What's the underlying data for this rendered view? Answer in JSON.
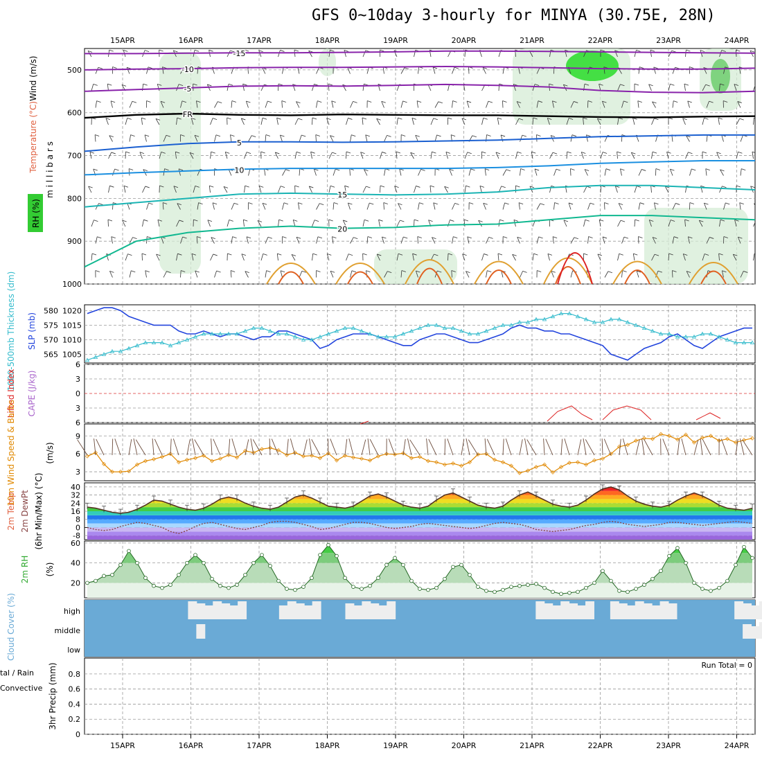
{
  "title": "GFS 0~10day 3-hourly for MINYA (30.75E, 28N)",
  "colors": {
    "rh": "#22cc22",
    "temp": "#e06040",
    "wind": "#0000cc",
    "slp": "#2244dd",
    "thick": "#33bbcc",
    "lifted": "#dd2222",
    "cape": "#aa66cc",
    "wind10": "#e08800",
    "cloud": "#6aaad6",
    "cloud_gap": "#eeeeee",
    "rh2m": "#33aa33",
    "precip_total": "#33cc33",
    "precip_conv": "#dd2222"
  },
  "chart_data": [
    {
      "type": "heatmap",
      "name": "upper-air",
      "ylabel_parts": [
        "RH (%)",
        "Temperature (°C)",
        "Wind (m/s)"
      ],
      "ylabel2": "m i l l i b a r s",
      "x": [
        "15APR",
        "16APR",
        "17APR",
        "18APR",
        "19APR",
        "20APR",
        "21APR",
        "22APR",
        "23APR",
        "24APR"
      ],
      "yticks": [
        500,
        600,
        700,
        800,
        900,
        1000
      ],
      "ylim": [
        1000,
        450
      ],
      "temperature_contours": [
        {
          "level": -15,
          "p": [
            462,
            462,
            461,
            460,
            460,
            459,
            458,
            456,
            456,
            457,
            458,
            459,
            460,
            461
          ]
        },
        {
          "level": -10,
          "p": [
            500,
            498,
            497,
            495,
            494,
            494,
            493,
            492,
            493,
            495,
            497,
            498,
            498,
            496
          ]
        },
        {
          "level": -5,
          "p": [
            550,
            546,
            542,
            538,
            537,
            538,
            536,
            534,
            536,
            540,
            548,
            552,
            553,
            550
          ]
        },
        {
          "level": 0,
          "p": [
            612,
            605,
            602,
            605,
            606,
            604,
            605,
            606,
            606,
            608,
            610,
            611,
            609,
            608
          ]
        },
        {
          "level": 5,
          "p": [
            690,
            680,
            672,
            668,
            668,
            669,
            668,
            666,
            664,
            660,
            656,
            654,
            652,
            652
          ]
        },
        {
          "level": 10,
          "p": [
            745,
            740,
            736,
            732,
            730,
            730,
            730,
            730,
            728,
            724,
            718,
            715,
            712,
            712
          ]
        },
        {
          "level": 15,
          "p": [
            820,
            810,
            800,
            790,
            788,
            790,
            792,
            790,
            785,
            775,
            770,
            770,
            775,
            780
          ]
        },
        {
          "level": 20,
          "p": [
            960,
            900,
            880,
            870,
            865,
            870,
            868,
            862,
            860,
            850,
            840,
            840,
            845,
            850
          ]
        }
      ],
      "contour_labels": [
        "-15",
        "-10",
        "-5",
        "FR",
        "5",
        "10",
        "15",
        "20"
      ]
    },
    {
      "type": "line",
      "name": "slp-thickness",
      "ylabel": "SLP (mb)",
      "ylabel2": "1000-500mb Thickness (dm)",
      "yticks_left": [
        565,
        570,
        575,
        580
      ],
      "yticks_right": [
        1005,
        1010,
        1015,
        1020
      ],
      "series": [
        {
          "name": "SLP (mb)",
          "y_unit": "mb",
          "values": [
            1019,
            1020,
            1021,
            1021,
            1020,
            1018,
            1017,
            1016,
            1015,
            1015,
            1015,
            1013,
            1012,
            1012,
            1013,
            1012,
            1011,
            1012,
            1012,
            1011,
            1010,
            1011,
            1011,
            1013,
            1013,
            1012,
            1011,
            1010,
            1007,
            1008,
            1010,
            1011,
            1012,
            1012,
            1012,
            1011,
            1010,
            1009,
            1008,
            1008,
            1010,
            1011,
            1012,
            1012,
            1011,
            1010,
            1009,
            1009,
            1010,
            1011,
            1012,
            1014,
            1015,
            1014,
            1014,
            1013,
            1013,
            1012,
            1012,
            1011,
            1010,
            1009,
            1008,
            1005,
            1004,
            1003,
            1005,
            1007,
            1008,
            1009,
            1011,
            1012,
            1010,
            1008,
            1007,
            1009,
            1011,
            1012,
            1013,
            1014,
            1014
          ]
        },
        {
          "name": "Thickness (dm)",
          "y_unit": "dm",
          "values": [
            563,
            564,
            565,
            566,
            566,
            567,
            568,
            569,
            569,
            569,
            568,
            569,
            570,
            571,
            572,
            572,
            572,
            572,
            572,
            573,
            574,
            574,
            573,
            572,
            572,
            571,
            570,
            570,
            571,
            572,
            573,
            574,
            574,
            573,
            572,
            571,
            571,
            571,
            572,
            573,
            574,
            575,
            575,
            574,
            574,
            573,
            572,
            572,
            573,
            574,
            575,
            575,
            576,
            576,
            577,
            577,
            578,
            579,
            579,
            578,
            577,
            576,
            576,
            577,
            577,
            576,
            575,
            574,
            573,
            572,
            572,
            571,
            571,
            571,
            572,
            572,
            571,
            570,
            569,
            569,
            569
          ]
        }
      ]
    },
    {
      "type": "line",
      "name": "cape-lifted",
      "ylabel": "Lifted Index",
      "ylabel2": "CAPE (J/kg)",
      "yticks": [
        "-6",
        "-3",
        "0",
        "3",
        "6"
      ],
      "ylim": [
        -6,
        6
      ],
      "series": [
        {
          "name": "Lifted Index",
          "values": [
            null,
            null,
            null,
            null,
            null,
            null,
            null,
            null,
            null,
            null,
            null,
            null,
            null,
            null,
            null,
            null,
            null,
            null,
            null,
            null,
            null,
            null,
            null,
            null,
            null,
            null,
            null,
            null,
            null,
            null,
            null,
            null,
            null,
            null,
            null,
            null,
            null,
            null,
            null,
            null,
            null,
            null,
            null,
            null,
            null,
            null,
            null,
            null,
            null,
            null,
            null,
            null,
            null,
            null,
            null,
            null,
            null,
            null,
            null,
            null,
            null,
            null,
            null,
            null,
            null,
            3,
            4,
            5,
            6,
            7,
            7,
            6,
            5,
            4,
            3,
            3,
            4,
            5,
            6,
            7,
            7
          ]
        }
      ]
    },
    {
      "type": "line",
      "name": "wind10m",
      "ylabel": "10m Wind Speed & Barbs",
      "ylabel2": "(m/s)",
      "yticks": [
        3,
        6,
        9
      ],
      "ylim": [
        1.5,
        11
      ],
      "series": [
        {
          "name": "10m Wind Speed",
          "values": [
            5.6,
            6.2,
            4.3,
            3.0,
            3.0,
            3.1,
            4.2,
            4.8,
            5.1,
            5.5,
            6.0,
            4.6,
            5.0,
            5.3,
            5.7,
            4.8,
            5.2,
            5.8,
            5.4,
            6.5,
            6.2,
            6.8,
            7.0,
            6.6,
            5.8,
            6.2,
            5.6,
            5.7,
            5.3,
            6.1,
            4.9,
            5.7,
            5.4,
            5.2,
            4.9,
            5.6,
            6.0,
            5.9,
            6.1,
            5.3,
            5.5,
            4.8,
            4.6,
            4.2,
            4.4,
            4.0,
            4.6,
            5.9,
            6.0,
            5.0,
            4.6,
            4.0,
            2.8,
            3.2,
            3.8,
            4.2,
            2.9,
            3.8,
            4.5,
            4.6,
            4.2,
            4.9,
            5.2,
            6.0,
            7.2,
            7.5,
            8.2,
            8.6,
            8.5,
            9.3,
            9.0,
            8.4,
            9.2,
            7.9,
            8.7,
            9.0,
            8.2,
            8.5,
            7.9,
            8.3,
            8.6
          ]
        }
      ]
    },
    {
      "type": "area",
      "name": "temp2m",
      "ylabel": "2m Temp",
      "ylabel2": "2m DewPt",
      "ylabel3": "(6hr Min/Max) (°C)",
      "yticks": [
        -8,
        0,
        8,
        16,
        24,
        32,
        40
      ],
      "ylim": [
        -12,
        44
      ],
      "series": [
        {
          "name": "2m Temp",
          "values": [
            20,
            19,
            17,
            15,
            14,
            15,
            18,
            22,
            27,
            26,
            23,
            20,
            18,
            17,
            19,
            23,
            28,
            30,
            28,
            24,
            21,
            19,
            18,
            20,
            25,
            30,
            32,
            29,
            25,
            21,
            20,
            19,
            21,
            26,
            31,
            33,
            30,
            26,
            22,
            20,
            19,
            21,
            27,
            32,
            34,
            30,
            26,
            22,
            20,
            19,
            21,
            27,
            32,
            35,
            31,
            27,
            23,
            21,
            20,
            22,
            27,
            33,
            38,
            40,
            37,
            31,
            26,
            23,
            21,
            20,
            22,
            27,
            31,
            34,
            31,
            27,
            22,
            19,
            18,
            17,
            19
          ]
        },
        {
          "name": "2m DewPt",
          "values": [
            0,
            -2,
            -3,
            -2,
            1,
            3,
            5,
            4,
            2,
            0,
            -4,
            -6,
            -3,
            1,
            4,
            5,
            3,
            1,
            -1,
            -2,
            0,
            2,
            5,
            6,
            6,
            5,
            3,
            1,
            -2,
            -1,
            1,
            3,
            5,
            5,
            4,
            2,
            0,
            -1,
            0,
            1,
            3,
            4,
            3,
            2,
            1,
            0,
            -1,
            0,
            2,
            4,
            5,
            4,
            3,
            1,
            -2,
            -3,
            -4,
            -3,
            -2,
            0,
            2,
            3,
            5,
            6,
            5,
            3,
            2,
            1,
            2,
            3,
            5,
            5,
            4,
            3,
            2,
            3,
            4,
            5,
            6,
            5,
            4
          ]
        }
      ]
    },
    {
      "type": "area",
      "name": "rh2m",
      "ylabel": "2m RH",
      "ylabel2": "(%)",
      "yticks": [
        20,
        40,
        60
      ],
      "ylim": [
        5,
        62
      ],
      "series": [
        {
          "name": "2m RH",
          "values": [
            20,
            22,
            27,
            28,
            38,
            52,
            40,
            25,
            17,
            15,
            18,
            28,
            40,
            48,
            40,
            24,
            17,
            15,
            18,
            28,
            40,
            48,
            37,
            22,
            14,
            13,
            16,
            25,
            48,
            58,
            47,
            25,
            16,
            14,
            17,
            25,
            38,
            45,
            38,
            22,
            14,
            13,
            15,
            24,
            36,
            38,
            28,
            16,
            12,
            11,
            13,
            16,
            17,
            18,
            19,
            15,
            11,
            9,
            10,
            11,
            15,
            20,
            32,
            22,
            12,
            11,
            14,
            18,
            24,
            32,
            47,
            55,
            40,
            20,
            14,
            12,
            15,
            22,
            38,
            56,
            45
          ]
        }
      ]
    },
    {
      "type": "heatmap",
      "name": "cloud-cover",
      "ylabel": "Cloud Cover (%)",
      "ytick_labels": [
        "high",
        "middle",
        "low"
      ],
      "series": [
        {
          "name": "high",
          "values": [
            0,
            0,
            0,
            0,
            0,
            0,
            0,
            0,
            0,
            0,
            0,
            0,
            1,
            1,
            1,
            1,
            1,
            1,
            1,
            0,
            0,
            0,
            0,
            1,
            1,
            1,
            1,
            1,
            0,
            0,
            0,
            1,
            1,
            1,
            1,
            1,
            1,
            0,
            0,
            0,
            0,
            0,
            0,
            0,
            0,
            0,
            0,
            0,
            0,
            0,
            0,
            0,
            0,
            0,
            1,
            1,
            1,
            1,
            1,
            1,
            1,
            0,
            0,
            1,
            1,
            1,
            1,
            1,
            1,
            1,
            1,
            0,
            0,
            0,
            0,
            0,
            0,
            0,
            1,
            1,
            1,
            1
          ]
        },
        {
          "name": "middle",
          "values": [
            0,
            0,
            0,
            0,
            0,
            0,
            0,
            0,
            0,
            0,
            0,
            0,
            0,
            1,
            0,
            0,
            0,
            0,
            0,
            0,
            0,
            0,
            0,
            0,
            0,
            0,
            0,
            0,
            0,
            0,
            0,
            0,
            0,
            0,
            0,
            0,
            0,
            0,
            0,
            0,
            0,
            0,
            0,
            0,
            0,
            0,
            0,
            0,
            0,
            0,
            0,
            0,
            0,
            0,
            0,
            0,
            0,
            0,
            0,
            0,
            0,
            0,
            0,
            0,
            0,
            0,
            0,
            0,
            0,
            0,
            0,
            0,
            0,
            0,
            0,
            0,
            0,
            0,
            0,
            1,
            1,
            1,
            1
          ]
        },
        {
          "name": "low",
          "values": []
        }
      ]
    },
    {
      "type": "bar",
      "name": "precip",
      "ylabel": "3hr Precip (mm)",
      "ylabel_left1": "tal / Rain",
      "ylabel_left2": "Convective",
      "yticks": [
        "0",
        "0.2",
        "0.4",
        "0.6",
        "0.8"
      ],
      "ylim": [
        0,
        0.9
      ],
      "annotation": "Run Total = 0",
      "values": []
    }
  ],
  "axis": {
    "x_labels": [
      "15APR",
      "16APR",
      "17APR",
      "18APR",
      "19APR",
      "20APR",
      "21APR",
      "22APR",
      "23APR",
      "24APR"
    ]
  }
}
